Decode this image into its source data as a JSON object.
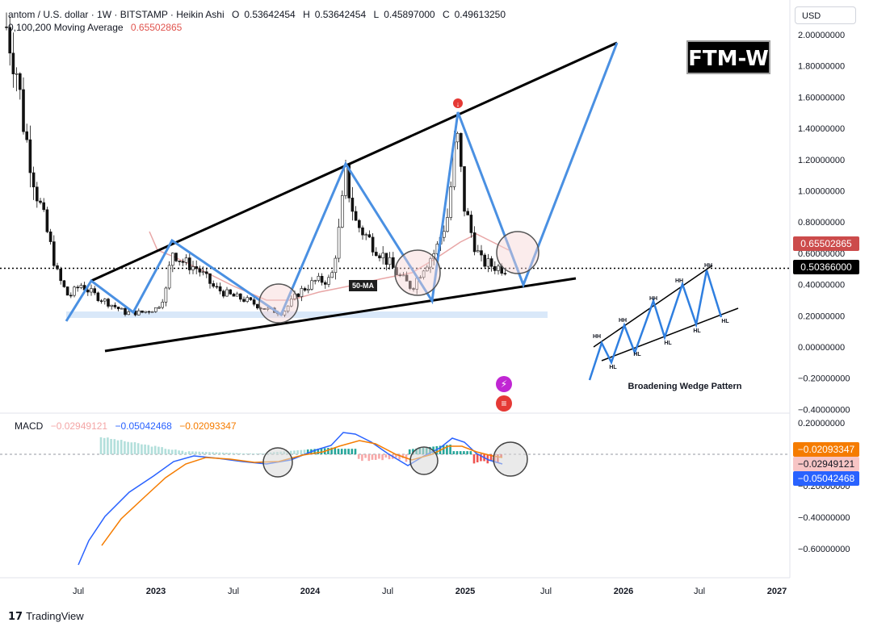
{
  "header": {
    "symbol": "antom / U.S. dollar · 1W · BITSTAMP · Heikin Ashi",
    "ohlc": [
      {
        "k": "O",
        "v": "0.53642454"
      },
      {
        "k": "H",
        "v": "0.53642454"
      },
      {
        "k": "L",
        "v": "0.45897000"
      },
      {
        "k": "C",
        "v": "0.49613250"
      }
    ],
    "ma_label": "0,100,200 Moving Average",
    "ma_value": "0.65502865"
  },
  "currency": "USD",
  "watermark_label": "FTM-W",
  "ma_annotation": "50-MA",
  "pattern_title": "Broadening Wedge Pattern",
  "pattern_labels": [
    "HH",
    "HL",
    "HH",
    "HL",
    "HH",
    "HL",
    "HH",
    "HL",
    "HH",
    "HL"
  ],
  "macd": {
    "label": "MACD",
    "hist": "−0.02949121",
    "macd": "−0.05042468",
    "signal": "−0.02093347"
  },
  "price_tags": {
    "ma": "0.65502865",
    "last": "0.50366000"
  },
  "macd_tags": {
    "signal": "−0.02093347",
    "hist": "−0.02949121",
    "macd": "−0.05042468"
  },
  "colors": {
    "ma_tag": "#cc4b4b",
    "last_tag": "#000000",
    "signal_tag": "#f57c00",
    "hist_tag": "#f7c5c5",
    "macd_tag": "#2962ff",
    "projection": "#4a90e2",
    "wedge": "#000000"
  },
  "chart_data": {
    "type": "candlestick",
    "price_axis": {
      "ticks": [
        "2.00000000",
        "1.80000000",
        "1.60000000",
        "1.40000000",
        "1.20000000",
        "1.00000000",
        "0.80000000",
        "0.60000000",
        "0.40000000",
        "0.20000000",
        "0.00000000",
        "−0.20000000",
        "−0.40000000"
      ],
      "ylim": [
        -0.4,
        2.0
      ]
    },
    "macd_axis": {
      "ticks": [
        "0.20000000",
        "0.00000000",
        "−0.20000000",
        "−0.40000000",
        "−0.60000000"
      ],
      "ylim": [
        -0.65,
        0.2
      ]
    },
    "x_axis": {
      "labels": [
        "Jul",
        "2023",
        "Jul",
        "2024",
        "Jul",
        "2025",
        "Jul",
        "2026",
        "Jul",
        "2027"
      ]
    },
    "last_price": 0.50366,
    "series": [
      {
        "name": "0,100,200 Moving Average",
        "last": 0.65502865
      }
    ]
  }
}
